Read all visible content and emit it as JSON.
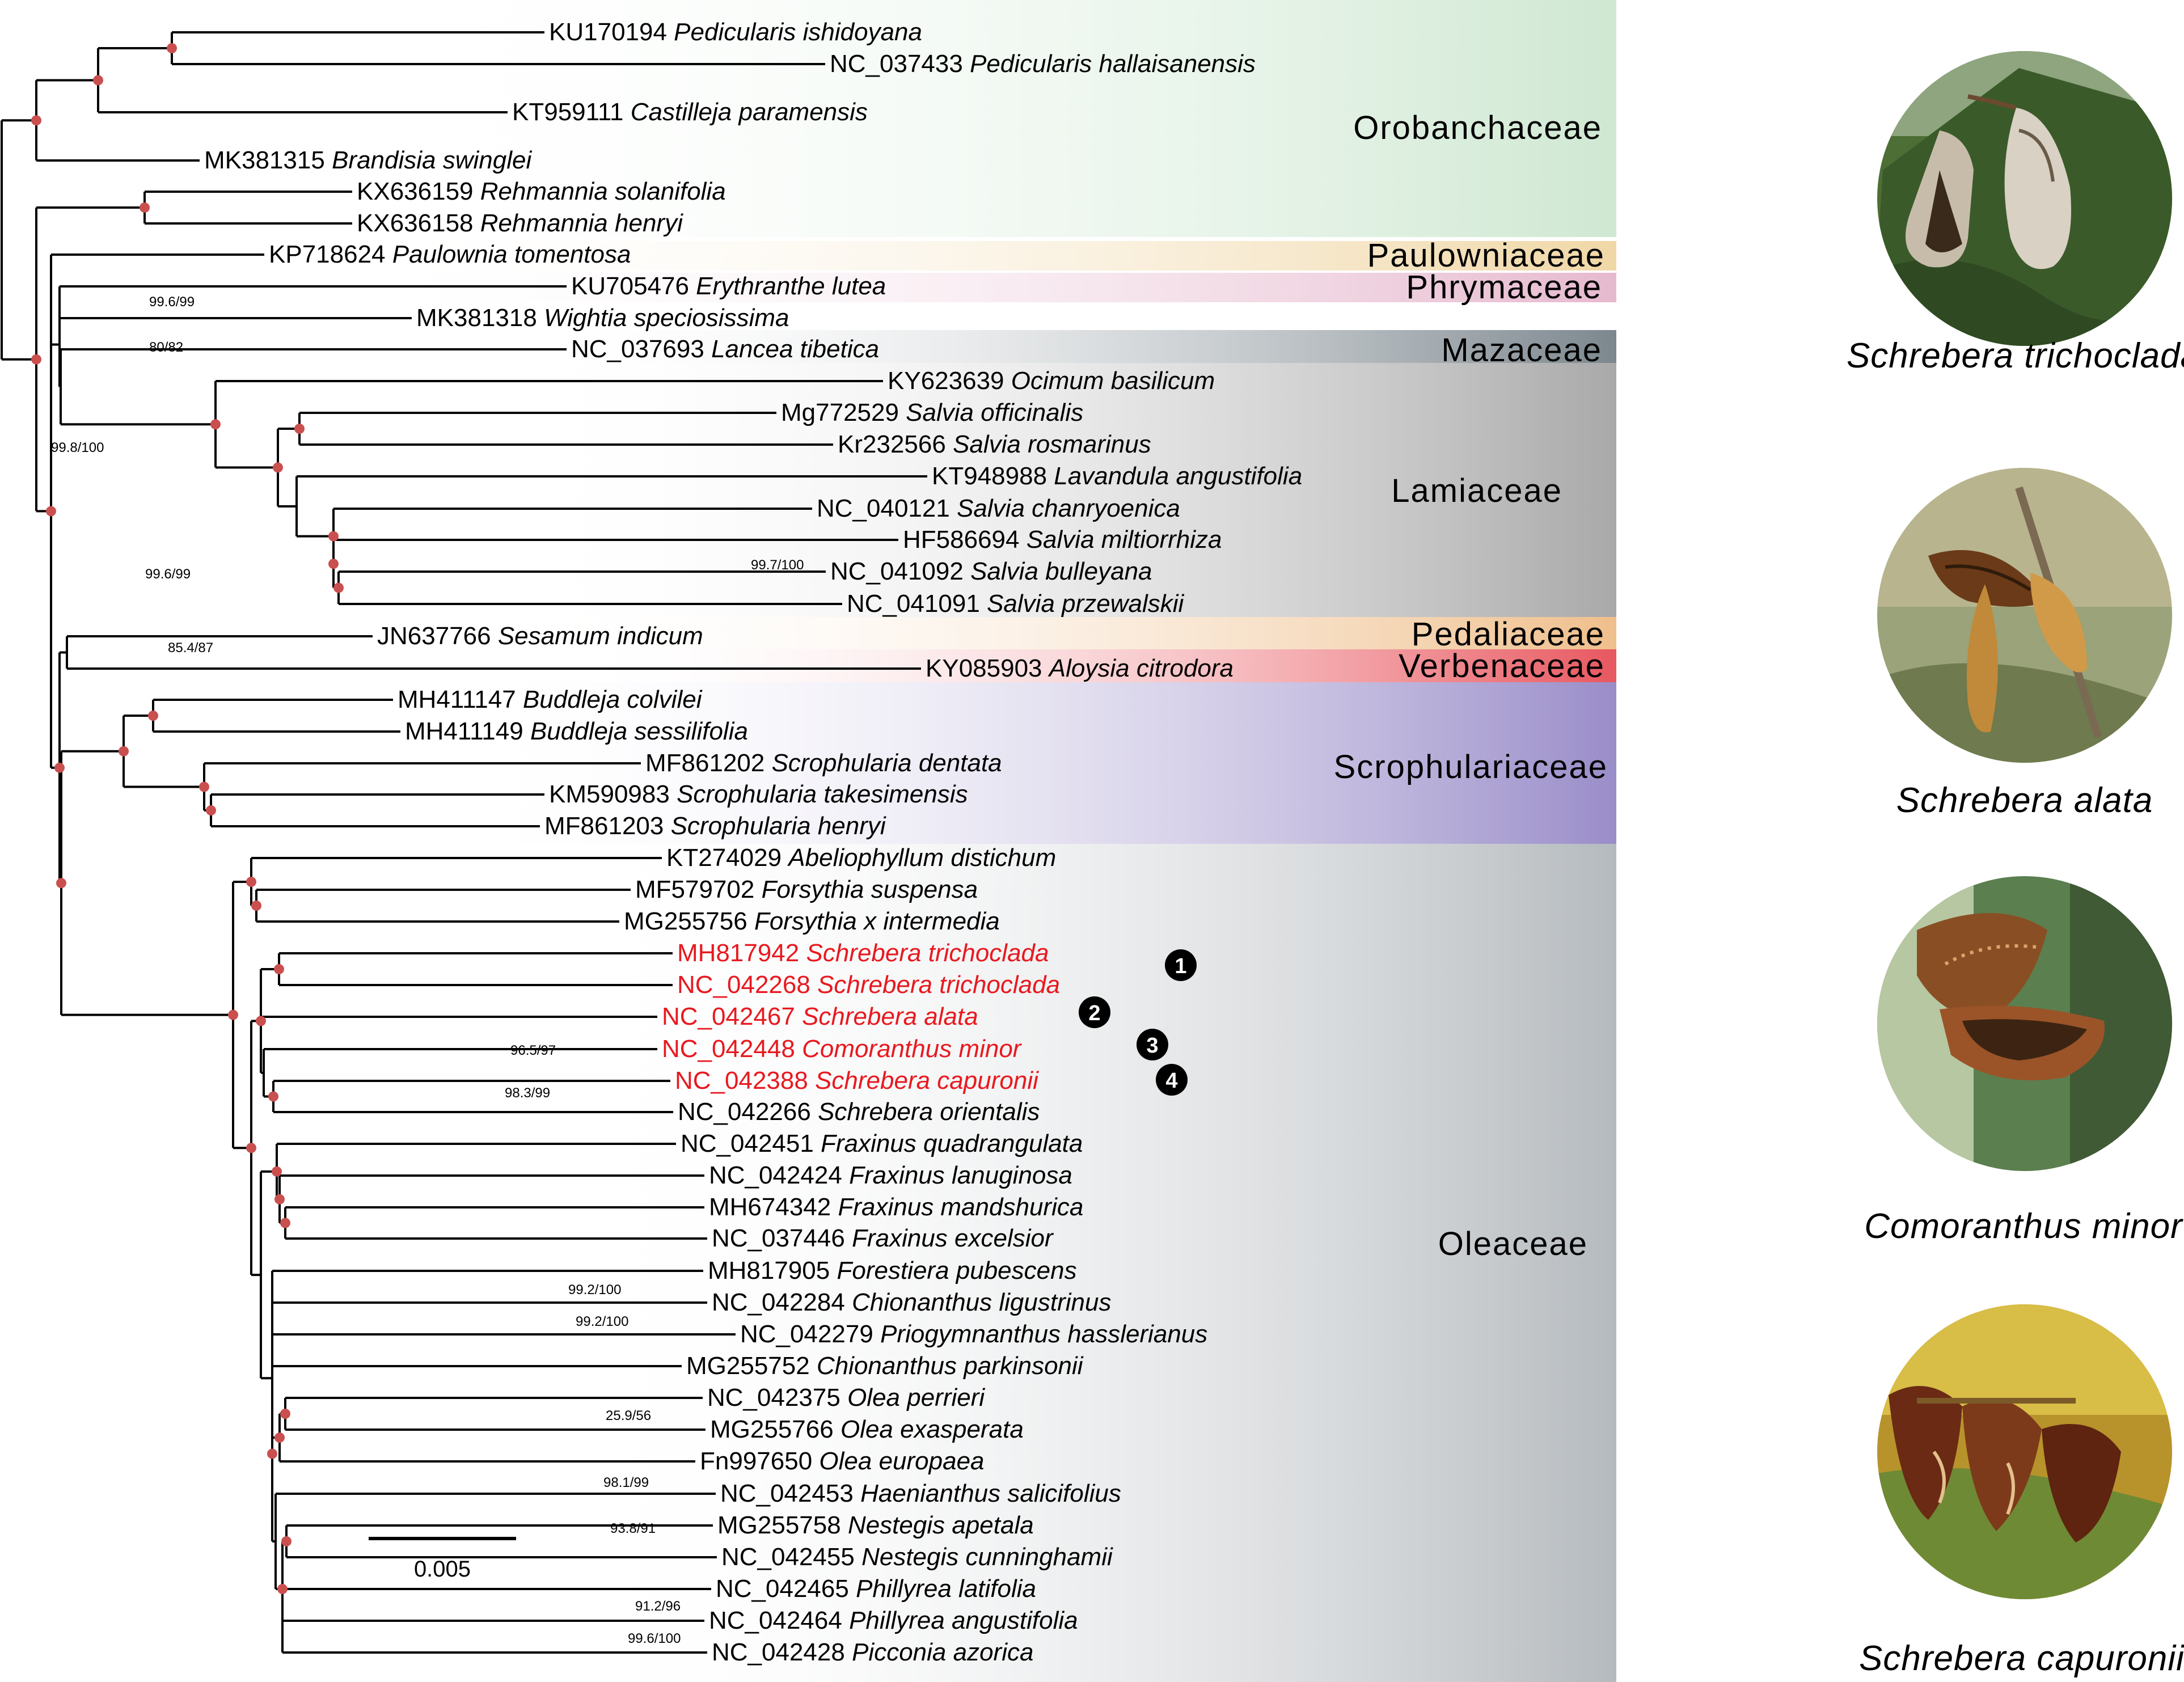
{
  "tips": [
    {
      "acc": "KU170194",
      "species": "Pedicularis ishidoyana"
    },
    {
      "acc": "NC_037433",
      "species": "Pedicularis hallaisanensis"
    },
    {
      "acc": "KT959111",
      "species": "Castilleja paramensis"
    },
    {
      "acc": "MK381315",
      "species": "Brandisia swinglei"
    },
    {
      "acc": "KX636159",
      "species": "Rehmannia solanifolia"
    },
    {
      "acc": "KX636158",
      "species": "Rehmannia henryi"
    },
    {
      "acc": "KP718624",
      "species": "Paulownia tomentosa"
    },
    {
      "acc": "KU705476",
      "species": "Erythranthe lutea"
    },
    {
      "acc": "MK381318",
      "species": "Wightia speciosissima"
    },
    {
      "acc": "NC_037693",
      "species": "Lancea tibetica"
    },
    {
      "acc": "KY623639",
      "species": "Ocimum basilicum"
    },
    {
      "acc": "Mg772529",
      "species": "Salvia officinalis"
    },
    {
      "acc": "Kr232566",
      "species": "Salvia rosmarinus"
    },
    {
      "acc": "KT948988",
      "species": "Lavandula angustifolia"
    },
    {
      "acc": "NC_040121",
      "species": "Salvia chanryoenica"
    },
    {
      "acc": "HF586694",
      "species": "Salvia miltiorrhiza"
    },
    {
      "acc": "NC_041092",
      "species": "Salvia bulleyana"
    },
    {
      "acc": "NC_041091",
      "species": "Salvia przewalskii"
    },
    {
      "acc": "JN637766",
      "species": "Sesamum indicum"
    },
    {
      "acc": "KY085903",
      "species": "Aloysia citrodora"
    },
    {
      "acc": "MH411147",
      "species": "Buddleja colvilei"
    },
    {
      "acc": "MH411149",
      "species": "Buddleja sessilifolia"
    },
    {
      "acc": "MF861202",
      "species": "Scrophularia dentata"
    },
    {
      "acc": "KM590983",
      "species": "Scrophularia takesimensis"
    },
    {
      "acc": "MF861203",
      "species": "Scrophularia henryi"
    },
    {
      "acc": "KT274029",
      "species": "Abeliophyllum distichum"
    },
    {
      "acc": "MF579702",
      "species": "Forsythia suspensa"
    },
    {
      "acc": "MG255756",
      "species": "Forsythia x intermedia"
    },
    {
      "acc": "MH817942",
      "species": "Schrebera trichoclada",
      "highlight": true
    },
    {
      "acc": "NC_042268",
      "species": "Schrebera trichoclada",
      "highlight": true
    },
    {
      "acc": "NC_042467",
      "species": "Schrebera alata",
      "highlight": true
    },
    {
      "acc": "NC_042448",
      "species": "Comoranthus minor",
      "highlight": true
    },
    {
      "acc": "NC_042388",
      "species": "Schrebera capuronii",
      "highlight": true
    },
    {
      "acc": "NC_042266",
      "species": "Schrebera orientalis"
    },
    {
      "acc": "NC_042451",
      "species": "Fraxinus quadrangulata"
    },
    {
      "acc": "NC_042424",
      "species": "Fraxinus lanuginosa"
    },
    {
      "acc": "MH674342",
      "species": "Fraxinus mandshurica"
    },
    {
      "acc": "NC_037446",
      "species": "Fraxinus excelsior"
    },
    {
      "acc": "MH817905",
      "species": "Forestiera pubescens"
    },
    {
      "acc": "NC_042284",
      "species": "Chionanthus ligustrinus"
    },
    {
      "acc": "NC_042279",
      "species": "Priogymnanthus hasslerianus"
    },
    {
      "acc": "MG255752",
      "species": "Chionanthus parkinsonii"
    },
    {
      "acc": "NC_042375",
      "species": "Olea perrieri"
    },
    {
      "acc": "MG255766",
      "species": "Olea exasperata"
    },
    {
      "acc": "Fn997650",
      "species": "Olea europaea"
    },
    {
      "acc": "NC_042453",
      "species": "Haenianthus salicifolius"
    },
    {
      "acc": "MG255758",
      "species": "Nestegis apetala"
    },
    {
      "acc": "NC_042455",
      "species": "Nestegis cunninghamii"
    },
    {
      "acc": "NC_042465",
      "species": "Phillyrea latifolia"
    },
    {
      "acc": "NC_042464",
      "species": "Phillyrea angustifolia"
    },
    {
      "acc": "NC_042428",
      "species": "Picconia azorica"
    }
  ],
  "families": [
    {
      "name": "Orobanchaceae",
      "color": "#cfe8d2"
    },
    {
      "name": "Paulowniaceae",
      "color": "#f0d7a6"
    },
    {
      "name": "Phrymaceae",
      "color": "#ecc5d8"
    },
    {
      "name": "Mazaceae",
      "color": "#8a959b"
    },
    {
      "name": "Lamiaceae",
      "color": "#b2b2b2"
    },
    {
      "name": "Pedaliaceae",
      "color": "#efbf8c"
    },
    {
      "name": "Verbenaceae",
      "color": "#e8575f"
    },
    {
      "name": "Scrophulariaceae",
      "color": "#9f93cc"
    },
    {
      "name": "Oleaceae",
      "color": "#b9bec2"
    }
  ],
  "support": [
    "99.6/99",
    "80/82",
    "99.8/100",
    "99.6/99",
    "99.7/100",
    "85.4/87",
    "96.5/97",
    "98.3/99",
    "99.2/100",
    "99.2/100",
    "25.9/56",
    "98.1/99",
    "93.8/91",
    "91.2/96",
    "99.6/100"
  ],
  "markers": [
    "1",
    "2",
    "3",
    "4"
  ],
  "scale_label": "0.005",
  "photos": [
    {
      "caption": "Schrebera trichoclada"
    },
    {
      "caption": "Schrebera alata"
    },
    {
      "caption": "Comoranthus minor"
    },
    {
      "caption": "Schrebera capuronii"
    }
  ],
  "colors": {
    "branch": "#000000",
    "node": "#c9504f",
    "highlight": "#e8191f",
    "marker": "#000000"
  }
}
